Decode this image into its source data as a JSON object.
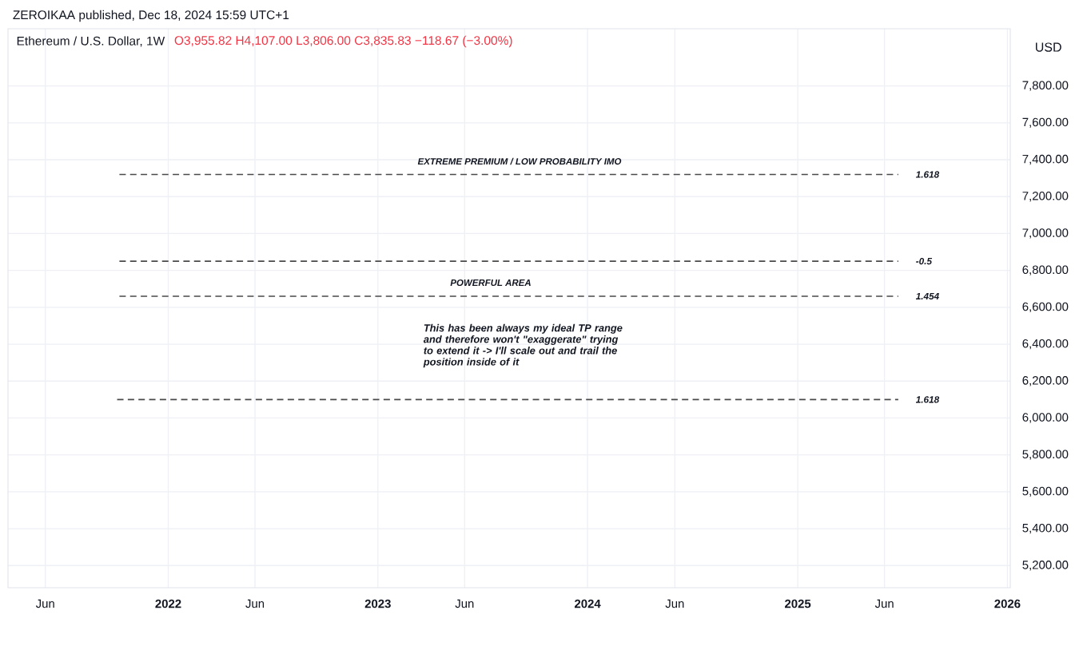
{
  "chart_data": {
    "type": "line",
    "title": "Ethereum / U.S. Dollar, 1W",
    "subtitle": "O3,955.82 H4,107.00 L3,806.00 C3,835.83 −118.67 (−3.00%)",
    "ylabel": "USD",
    "annotations": [
      "ZEROIKAA published, Dec 18, 2024 15:59 UTC+1",
      "EXTREME PREMIUM / LOW PROBABILITY IMO",
      "POWERFUL AREA",
      "This has been always my ideal TP range and therefore won't \"exaggerate\" trying to extend it -> I'll scale out and trail the position inside of it"
    ],
    "series": [
      {
        "name": "1.618",
        "color": "#4a4a4a",
        "x": [
          "2021-10-08",
          "2025-06-25"
        ],
        "values": [
          7320,
          7320
        ]
      },
      {
        "name": "-0.5",
        "color": "#4a4a4a",
        "x": [
          "2021-10-08",
          "2025-06-25"
        ],
        "values": [
          6850,
          6850
        ]
      },
      {
        "name": "1.454",
        "color": "#4a4a4a",
        "x": [
          "2021-10-08",
          "2025-06-25"
        ],
        "values": [
          6660,
          6660
        ]
      },
      {
        "name": "1.618",
        "color": "#4a4a4a",
        "x": [
          "2021-10-04",
          "2025-06-25"
        ],
        "values": [
          6100,
          6100
        ]
      }
    ],
    "line_style": "dashed",
    "grid": true,
    "xlim": [
      "2021-03-28",
      "2026-01-06"
    ],
    "ylim": [
      5080,
      8110
    ],
    "xticks": [
      {
        "value": "2021-06-01",
        "label": "Jun"
      },
      {
        "value": "2022-01-01",
        "label": "2022"
      },
      {
        "value": "2022-06-01",
        "label": "Jun"
      },
      {
        "value": "2023-01-01",
        "label": "2023"
      },
      {
        "value": "2023-06-01",
        "label": "Jun"
      },
      {
        "value": "2024-01-01",
        "label": "2024"
      },
      {
        "value": "2024-06-01",
        "label": "Jun"
      },
      {
        "value": "2025-01-01",
        "label": "2025"
      },
      {
        "value": "2025-06-01",
        "label": "Jun"
      },
      {
        "value": "2026-01-01",
        "label": "2026"
      }
    ],
    "yticks": [
      {
        "value": 5200,
        "label": "5,200.00"
      },
      {
        "value": 5400,
        "label": "5,400.00"
      },
      {
        "value": 5600,
        "label": "5,600.00"
      },
      {
        "value": 5800,
        "label": "5,800.00"
      },
      {
        "value": 6000,
        "label": "6,000.00"
      },
      {
        "value": 6200,
        "label": "6,200.00"
      },
      {
        "value": 6400,
        "label": "6,400.00"
      },
      {
        "value": 6600,
        "label": "6,600.00"
      },
      {
        "value": 6800,
        "label": "6,800.00"
      },
      {
        "value": 7000,
        "label": "7,000.00"
      },
      {
        "value": 7200,
        "label": "7,200.00"
      },
      {
        "value": 7400,
        "label": "7,400.00"
      },
      {
        "value": 7600,
        "label": "7,600.00"
      },
      {
        "value": 7800,
        "label": "7,800.00"
      }
    ]
  }
}
